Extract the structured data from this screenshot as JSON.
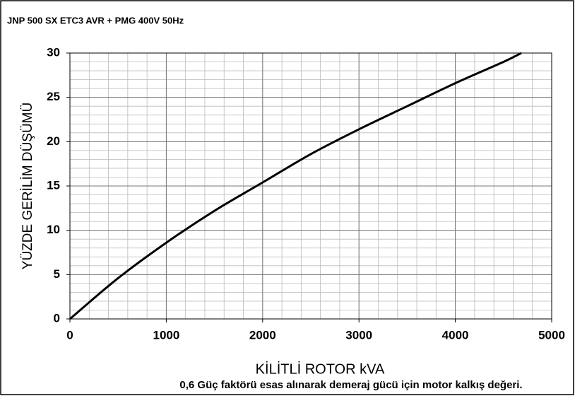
{
  "chart_data": {
    "type": "line",
    "title": "JNP 500 SX ETC3 AVR + PMG 400V 50Hz",
    "x_label": "KİLİTLİ  ROTOR kVA",
    "y_label": "YÜZDE GERİLİM DÜŞÜMÜ",
    "note": "0,6 Güç faktörü esas alınarak demeraj gücü için motor kalkış değeri.",
    "x": [
      0,
      500,
      1000,
      1500,
      2000,
      2500,
      3000,
      3500,
      4000,
      4500,
      4685
    ],
    "series": [
      {
        "color": "#000000",
        "values": [
          0,
          4.6,
          8.6,
          12.2,
          15.4,
          18.6,
          21.4,
          24.0,
          26.6,
          29.0,
          30
        ]
      }
    ],
    "xlim": [
      0,
      5000
    ],
    "ylim": [
      0,
      30
    ],
    "xticks": [
      0,
      1000,
      2000,
      3000,
      4000,
      5000
    ],
    "yticks": [
      0,
      5,
      10,
      15,
      20,
      25,
      30
    ],
    "minor_xticks": [
      0,
      200,
      400,
      600,
      800,
      1000,
      1200,
      1400,
      1600,
      1800,
      2000,
      2200,
      2400,
      2600,
      2800,
      3000,
      3200,
      3400,
      3600,
      3800,
      4000,
      4200,
      4400,
      4600,
      4800,
      5000
    ],
    "minor_yticks": [
      0,
      1,
      2,
      3,
      4,
      5,
      6,
      7,
      8,
      9,
      10,
      11,
      12,
      13,
      14,
      15,
      16,
      17,
      18,
      19,
      20,
      21,
      22,
      23,
      24,
      25,
      26,
      27,
      28,
      29,
      30
    ],
    "grid": true
  }
}
